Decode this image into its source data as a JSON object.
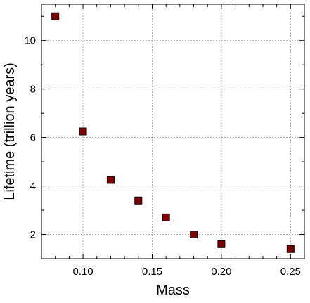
{
  "chart_data": {
    "type": "scatter",
    "title": "",
    "xlabel": "Mass",
    "ylabel": "Lifetime (trillion years)",
    "xlim": [
      0.07,
      0.26
    ],
    "ylim": [
      1.0,
      11.5
    ],
    "xticks": [
      0.1,
      0.15,
      0.2,
      0.25
    ],
    "xtick_labels": [
      "0.10",
      "0.15",
      "0.20",
      "0.25"
    ],
    "yticks": [
      2,
      4,
      6,
      8,
      10
    ],
    "ytick_labels": [
      "2",
      "4",
      "6",
      "8",
      "10"
    ],
    "grid": true,
    "legend": "none",
    "marker": "square",
    "marker_color": "#7f0000",
    "marker_edge_color": "#000000",
    "series": [
      {
        "x": [
          0.08,
          0.1,
          0.12,
          0.14,
          0.16,
          0.18,
          0.2,
          0.25
        ],
        "y": [
          11.0,
          6.25,
          4.25,
          3.4,
          2.7,
          2.0,
          1.6,
          1.4
        ]
      }
    ]
  }
}
